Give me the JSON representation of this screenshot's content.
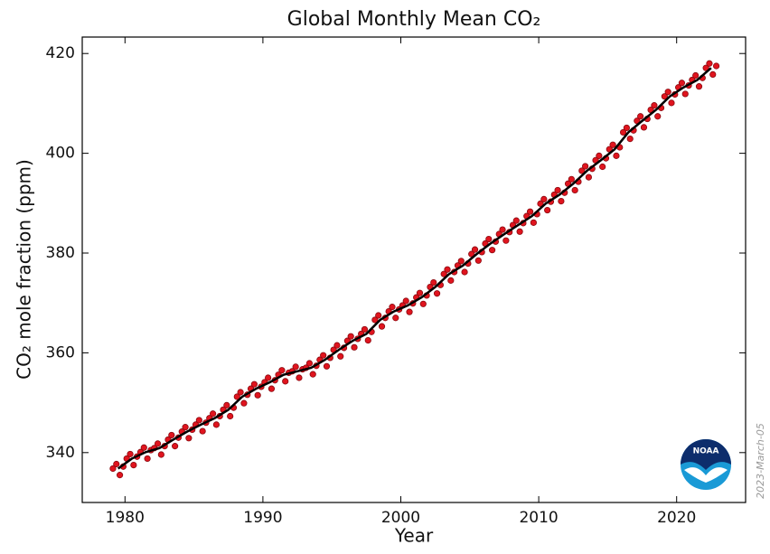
{
  "chart_data": {
    "type": "scatter_line",
    "title": "Global Monthly Mean CO₂",
    "xlabel": "Year",
    "ylabel": "CO₂ mole fraction (ppm)",
    "annotation": "2023-March-05",
    "logo_text": "NOAA",
    "xlim": [
      1976.9,
      2025
    ],
    "ylim": [
      330,
      423.3
    ],
    "xticks": [
      1980,
      1990,
      2000,
      2010,
      2020
    ],
    "yticks": [
      340,
      360,
      380,
      400,
      420
    ],
    "series": [
      {
        "kind": "points",
        "color": "#e0141e",
        "x": [
          1979.125,
          1979.375,
          1979.625,
          1979.875,
          1980.125,
          1980.375,
          1980.625,
          1980.875,
          1981.125,
          1981.375,
          1981.625,
          1981.875,
          1982.125,
          1982.375,
          1982.625,
          1982.875,
          1983.125,
          1983.375,
          1983.625,
          1983.875,
          1984.125,
          1984.375,
          1984.625,
          1984.875,
          1985.125,
          1985.375,
          1985.625,
          1985.875,
          1986.125,
          1986.375,
          1986.625,
          1986.875,
          1987.125,
          1987.375,
          1987.625,
          1987.875,
          1988.125,
          1988.375,
          1988.625,
          1988.875,
          1989.125,
          1989.375,
          1989.625,
          1989.875,
          1990.125,
          1990.375,
          1990.625,
          1990.875,
          1991.125,
          1991.375,
          1991.625,
          1991.875,
          1992.125,
          1992.375,
          1992.625,
          1992.875,
          1993.125,
          1993.375,
          1993.625,
          1993.875,
          1994.125,
          1994.375,
          1994.625,
          1994.875,
          1995.125,
          1995.375,
          1995.625,
          1995.875,
          1996.125,
          1996.375,
          1996.625,
          1996.875,
          1997.125,
          1997.375,
          1997.625,
          1997.875,
          1998.125,
          1998.375,
          1998.625,
          1998.875,
          1999.125,
          1999.375,
          1999.625,
          1999.875,
          2000.125,
          2000.375,
          2000.625,
          2000.875,
          2001.125,
          2001.375,
          2001.625,
          2001.875,
          2002.125,
          2002.375,
          2002.625,
          2002.875,
          2003.125,
          2003.375,
          2003.625,
          2003.875,
          2004.125,
          2004.375,
          2004.625,
          2004.875,
          2005.125,
          2005.375,
          2005.625,
          2005.875,
          2006.125,
          2006.375,
          2006.625,
          2006.875,
          2007.125,
          2007.375,
          2007.625,
          2007.875,
          2008.125,
          2008.375,
          2008.625,
          2008.875,
          2009.125,
          2009.375,
          2009.625,
          2009.875,
          2010.125,
          2010.375,
          2010.625,
          2010.875,
          2011.125,
          2011.375,
          2011.625,
          2011.875,
          2012.125,
          2012.375,
          2012.625,
          2012.875,
          2013.125,
          2013.375,
          2013.625,
          2013.875,
          2014.125,
          2014.375,
          2014.625,
          2014.875,
          2015.125,
          2015.375,
          2015.625,
          2015.875,
          2016.125,
          2016.375,
          2016.625,
          2016.875,
          2017.125,
          2017.375,
          2017.625,
          2017.875,
          2018.125,
          2018.375,
          2018.625,
          2018.875,
          2019.125,
          2019.375,
          2019.625,
          2019.875,
          2020.125,
          2020.375,
          2020.625,
          2020.875,
          2021.125,
          2021.375,
          2021.625,
          2021.875,
          2022.125,
          2022.375,
          2022.625,
          2022.875
        ],
        "values": [
          336.8,
          337.7,
          335.5,
          337.2,
          338.8,
          339.7,
          337.5,
          339.2,
          340.1,
          341.0,
          338.8,
          340.5,
          340.9,
          341.8,
          339.6,
          341.3,
          342.6,
          343.5,
          341.3,
          343.0,
          344.2,
          345.1,
          342.9,
          344.6,
          345.6,
          346.5,
          344.3,
          346.0,
          346.9,
          347.8,
          345.6,
          347.3,
          348.6,
          349.5,
          347.3,
          349.0,
          351.2,
          352.1,
          349.9,
          351.6,
          352.8,
          353.7,
          351.5,
          353.2,
          354.1,
          355.0,
          352.8,
          354.5,
          355.6,
          356.5,
          354.3,
          356.0,
          356.3,
          357.2,
          355.0,
          356.7,
          357.0,
          357.9,
          355.7,
          357.4,
          358.6,
          359.5,
          357.3,
          359.0,
          360.6,
          361.5,
          359.3,
          361.0,
          362.4,
          363.3,
          361.1,
          362.8,
          363.8,
          364.7,
          362.5,
          364.2,
          366.6,
          367.5,
          365.3,
          367.0,
          368.3,
          369.2,
          367.0,
          368.7,
          369.5,
          370.4,
          368.2,
          369.9,
          371.1,
          372.0,
          369.8,
          371.5,
          373.2,
          374.1,
          371.9,
          373.6,
          375.8,
          376.7,
          374.5,
          376.2,
          377.5,
          378.4,
          376.2,
          377.9,
          379.8,
          380.7,
          378.5,
          380.2,
          381.9,
          382.8,
          380.6,
          382.3,
          383.8,
          384.7,
          382.5,
          384.2,
          385.6,
          386.5,
          384.3,
          386.0,
          387.4,
          388.3,
          386.1,
          387.8,
          389.9,
          390.8,
          388.6,
          390.3,
          391.7,
          392.6,
          390.4,
          392.1,
          393.9,
          394.8,
          392.6,
          394.3,
          396.5,
          397.4,
          395.2,
          396.9,
          398.6,
          399.5,
          397.3,
          399.0,
          400.8,
          401.7,
          399.5,
          401.2,
          404.2,
          405.1,
          402.9,
          404.6,
          406.5,
          407.4,
          405.2,
          406.9,
          408.7,
          409.6,
          407.4,
          409.1,
          411.4,
          412.3,
          410.1,
          411.8,
          413.2,
          414.1,
          411.9,
          413.6,
          414.7,
          415.6,
          413.4,
          415.1,
          417.1,
          418.0,
          415.8,
          417.5
        ]
      },
      {
        "kind": "line",
        "color": "#000000",
        "x": [
          1979.5,
          1980.5,
          1981.5,
          1982.5,
          1983.5,
          1984.5,
          1985.5,
          1986.5,
          1987.5,
          1988.5,
          1989.5,
          1990.5,
          1991.5,
          1992.5,
          1993.5,
          1994.5,
          1995.5,
          1996.5,
          1997.5,
          1998.5,
          1999.5,
          2000.5,
          2001.5,
          2002.5,
          2003.5,
          2004.5,
          2005.5,
          2006.5,
          2007.5,
          2008.5,
          2009.5,
          2010.5,
          2011.5,
          2012.5,
          2013.5,
          2014.5,
          2015.5,
          2016.5,
          2017.5,
          2018.5,
          2019.5,
          2020.5,
          2021.5,
          2022.5
        ],
        "values": [
          336.8,
          338.8,
          340.1,
          340.9,
          342.6,
          344.2,
          345.6,
          346.9,
          348.6,
          351.2,
          352.8,
          354.1,
          355.6,
          356.3,
          357.0,
          358.6,
          360.6,
          362.4,
          363.8,
          366.6,
          368.3,
          369.5,
          371.1,
          373.2,
          375.8,
          377.5,
          379.8,
          381.9,
          383.8,
          385.6,
          387.4,
          389.9,
          391.7,
          393.9,
          396.5,
          398.6,
          400.8,
          404.2,
          406.5,
          408.7,
          411.4,
          413.2,
          414.7,
          417.1
        ]
      }
    ]
  }
}
